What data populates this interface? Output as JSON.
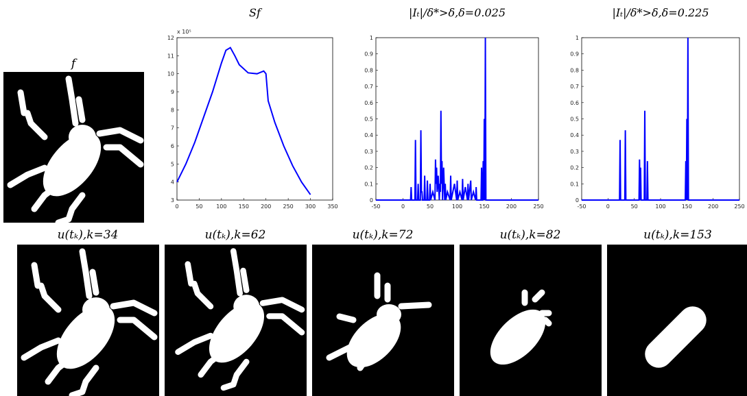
{
  "figure": {
    "images": [
      {
        "caption": "f"
      },
      {
        "caption": "u(tₖ),k=34"
      },
      {
        "caption": "u(tₖ),k=62"
      },
      {
        "caption": "u(tₖ),k=72"
      },
      {
        "caption": "u(tₖ),k=82"
      },
      {
        "caption": "u(tₖ),k=153"
      }
    ]
  },
  "chart_data": [
    {
      "type": "line",
      "title": "Sf",
      "y_scale_label": "x 10⁵",
      "x": [
        0,
        20,
        40,
        60,
        80,
        100,
        110,
        120,
        130,
        140,
        160,
        180,
        195,
        200,
        205,
        220,
        240,
        260,
        280,
        300
      ],
      "series": [
        {
          "color": "#0000ff",
          "values": [
            4.0,
            5.0,
            6.2,
            7.6,
            9.0,
            10.6,
            11.3,
            11.45,
            11.0,
            10.5,
            10.05,
            10.0,
            10.15,
            10.0,
            8.5,
            7.3,
            6.0,
            4.9,
            4.0,
            3.3
          ]
        }
      ],
      "xlim": [
        0,
        350
      ],
      "xticks": [
        0,
        50,
        100,
        150,
        200,
        250,
        300,
        350
      ],
      "ylim": [
        3,
        12
      ],
      "yticks": [
        3,
        4,
        5,
        6,
        7,
        8,
        9,
        10,
        11,
        12
      ]
    },
    {
      "type": "line",
      "title": "|Iₜ|/δ*>δ,δ=0.025",
      "x": [
        -50,
        14,
        15,
        16,
        22,
        23,
        24,
        27,
        28,
        29,
        32,
        33,
        34,
        35,
        36,
        39,
        40,
        41,
        44,
        45,
        46,
        49,
        50,
        51,
        55,
        59,
        60,
        61,
        62,
        63,
        65,
        67,
        68,
        69,
        70,
        71,
        72,
        73,
        75,
        77,
        78,
        79,
        82,
        87,
        88,
        89,
        95,
        99,
        100,
        101,
        105,
        109,
        110,
        111,
        115,
        119,
        120,
        121,
        125,
        126,
        130,
        134,
        135,
        136,
        144,
        145,
        146,
        147,
        148,
        149,
        150,
        151,
        152,
        153,
        154,
        250
      ],
      "series": [
        {
          "color": "#0000ff",
          "values": [
            0,
            0,
            0.08,
            0,
            0,
            0.37,
            0,
            0,
            0.1,
            0,
            0,
            0.43,
            0.05,
            0.05,
            0,
            0,
            0.15,
            0,
            0,
            0.12,
            0,
            0,
            0.1,
            0,
            0.05,
            0,
            0.25,
            0.1,
            0.2,
            0.05,
            0.15,
            0,
            0.1,
            0.05,
            0.55,
            0.1,
            0.24,
            0,
            0.2,
            0,
            0.1,
            0,
            0.05,
            0,
            0.15,
            0,
            0.1,
            0,
            0.12,
            0,
            0.05,
            0,
            0.13,
            0,
            0.08,
            0,
            0.1,
            0,
            0.12,
            0,
            0.05,
            0,
            0.08,
            0,
            0,
            0.2,
            0,
            0,
            0.24,
            0,
            0.5,
            0,
            1.0,
            0,
            0,
            0
          ]
        }
      ],
      "xlim": [
        -50,
        250
      ],
      "xticks": [
        -50,
        0,
        50,
        100,
        150,
        200,
        250
      ],
      "ylim": [
        0,
        1
      ],
      "yticks": [
        0,
        0.1,
        0.2,
        0.3,
        0.4,
        0.5,
        0.6,
        0.7,
        0.8,
        0.9,
        1
      ]
    },
    {
      "type": "line",
      "title": "|Iₜ|/δ*>δ,δ=0.225",
      "x": [
        -50,
        22,
        23,
        24,
        32,
        33,
        34,
        59,
        60,
        61,
        62,
        63,
        69,
        70,
        71,
        74,
        75,
        76,
        147,
        148,
        149,
        150,
        151,
        152,
        153,
        250
      ],
      "series": [
        {
          "color": "#0000ff",
          "values": [
            0,
            0,
            0.37,
            0,
            0,
            0.43,
            0,
            0,
            0.25,
            0,
            0.2,
            0,
            0,
            0.55,
            0,
            0,
            0.24,
            0,
            0,
            0.24,
            0,
            0.5,
            0,
            1.0,
            0,
            0
          ]
        }
      ],
      "xlim": [
        -50,
        250
      ],
      "xticks": [
        -50,
        0,
        50,
        100,
        150,
        200,
        250
      ],
      "ylim": [
        0,
        1
      ],
      "yticks": [
        0,
        0.1,
        0.2,
        0.3,
        0.4,
        0.5,
        0.6,
        0.7,
        0.8,
        0.9,
        1
      ]
    }
  ]
}
